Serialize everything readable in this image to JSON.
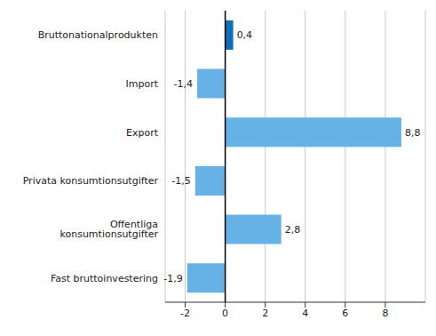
{
  "chart_data": {
    "type": "bar",
    "orientation": "horizontal",
    "categories": [
      "Bruttonationalprodukten",
      "Import",
      "Export",
      "Privata konsumtionsutgifter",
      "Offentliga konsumtionsutgifter",
      "Fast bruttoinvestering"
    ],
    "values": [
      0.4,
      -1.4,
      8.8,
      -1.5,
      2.8,
      -1.9
    ],
    "value_labels": [
      "0,4",
      "-1,4",
      "8,8",
      "-1,5",
      "2,8",
      "-1,9"
    ],
    "colors": [
      "#0f6fb7",
      "#66b2e6",
      "#66b2e6",
      "#66b2e6",
      "#66b2e6",
      "#66b2e6"
    ],
    "xlim": [
      -3,
      10
    ],
    "xticks": [
      -2,
      0,
      2,
      4,
      6,
      8
    ],
    "grid": true,
    "data_labels": true
  }
}
